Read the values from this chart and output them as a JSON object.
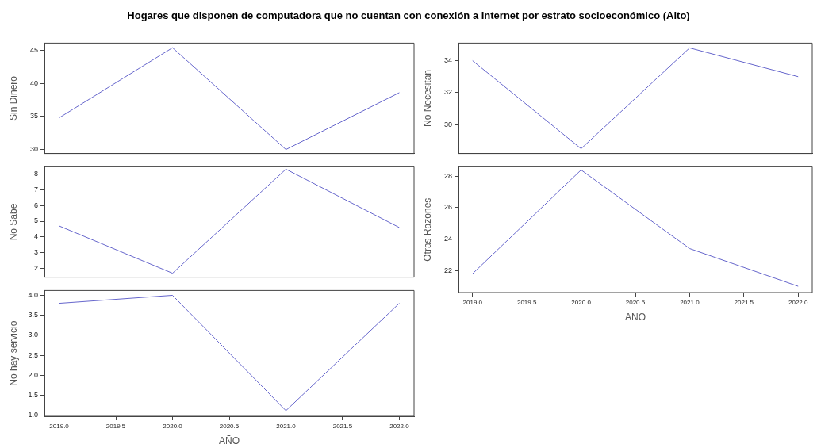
{
  "chart_data": [
    {
      "type": "line",
      "title": "Hogares que disponen de computadora que no cuentan con conexión a Internet por estrato socioeconómico (Alto)",
      "ylabel": "Sin Dinero",
      "x": [
        2019,
        2020,
        2021,
        2022
      ],
      "series": [
        {
          "color": "#6666cc",
          "values": [
            34.8,
            45.4,
            30.0,
            38.6
          ]
        }
      ],
      "xlim": [
        2018.87,
        2022.13
      ],
      "ylim": [
        29.4,
        46.1
      ],
      "yticks": [
        30,
        35,
        40,
        45
      ],
      "tick_labels": "y"
    },
    {
      "type": "line",
      "ylabel": "No Necesitan",
      "x": [
        2019,
        2020,
        2021,
        2022
      ],
      "series": [
        {
          "color": "#6666cc",
          "values": [
            34.0,
            28.5,
            34.8,
            33.0
          ]
        }
      ],
      "xlim": [
        2018.87,
        2022.13
      ],
      "ylim": [
        28.2,
        35.1
      ],
      "yticks": [
        30,
        32,
        34
      ],
      "tick_labels": "y"
    },
    {
      "type": "line",
      "ylabel": "No Sabe",
      "x": [
        2019,
        2020,
        2021,
        2022
      ],
      "series": [
        {
          "color": "#6666cc",
          "values": [
            4.7,
            1.7,
            8.3,
            4.6
          ]
        }
      ],
      "xlim": [
        2018.87,
        2022.13
      ],
      "ylim": [
        1.45,
        8.45
      ],
      "yticks": [
        2,
        3,
        4,
        5,
        6,
        7,
        8
      ],
      "tick_labels": "y"
    },
    {
      "type": "line",
      "ylabel": "Otras Razones",
      "xlabel": "AÑO",
      "x": [
        2019,
        2020,
        2021,
        2022
      ],
      "series": [
        {
          "color": "#6666cc",
          "values": [
            21.8,
            28.4,
            23.4,
            21.0
          ]
        }
      ],
      "xlim": [
        2018.87,
        2022.13
      ],
      "xticks": [
        {
          "value": 2019,
          "label": "2019.0"
        },
        {
          "value": 2019.5,
          "label": "2019.5"
        },
        {
          "value": 2020,
          "label": "2020.0"
        },
        {
          "value": 2020.5,
          "label": "2020.5"
        },
        {
          "value": 2021,
          "label": "2021.0"
        },
        {
          "value": 2021.5,
          "label": "2021.5"
        },
        {
          "value": 2022,
          "label": "2022.0"
        }
      ],
      "ylim": [
        20.6,
        28.6
      ],
      "yticks": [
        22,
        24,
        26,
        28
      ]
    },
    {
      "type": "line",
      "ylabel": "No hay servicio",
      "xlabel": "AÑO",
      "x": [
        2019,
        2020,
        2021,
        2022
      ],
      "series": [
        {
          "color": "#6666cc",
          "values": [
            3.8,
            4.0,
            1.12,
            3.8
          ]
        }
      ],
      "xlim": [
        2018.87,
        2022.13
      ],
      "xticks": [
        {
          "value": 2019,
          "label": "2019.0"
        },
        {
          "value": 2019.5,
          "label": "2019.5"
        },
        {
          "value": 2020,
          "label": "2020.0"
        },
        {
          "value": 2020.5,
          "label": "2020.5"
        },
        {
          "value": 2021,
          "label": "2021.0"
        },
        {
          "value": 2021.5,
          "label": "2021.5"
        },
        {
          "value": 2022,
          "label": "2022.0"
        }
      ],
      "ylim": [
        0.98,
        4.12
      ],
      "yticks": [
        {
          "value": 1,
          "label": "1.0"
        },
        {
          "value": 1.5,
          "label": "1.5"
        },
        {
          "value": 2,
          "label": "2.0"
        },
        {
          "value": 2.5,
          "label": "2.5"
        },
        {
          "value": 3,
          "label": "3.0"
        },
        {
          "value": 3.5,
          "label": "3.5"
        },
        {
          "value": 4,
          "label": "4.0"
        }
      ]
    }
  ]
}
